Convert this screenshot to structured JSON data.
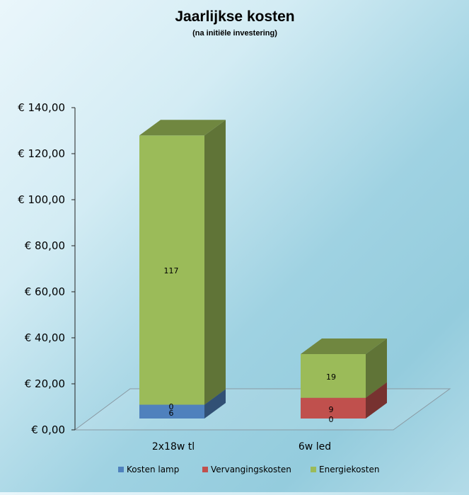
{
  "chart_data": {
    "type": "bar",
    "stacked": true,
    "style": "3d",
    "title": "Jaarlijkse kosten",
    "subtitle": "(na initiële investering)",
    "categories": [
      "2x18w tl",
      "6w led"
    ],
    "series": [
      {
        "name": "Kosten lamp",
        "values": [
          6,
          0
        ],
        "labels": [
          "6",
          "0"
        ],
        "color": "#4f81bd"
      },
      {
        "name": "Vervangingskosten",
        "values": [
          0,
          9
        ],
        "labels": [
          "0",
          "9"
        ],
        "color": "#c0504d"
      },
      {
        "name": "Energiekosten",
        "values": [
          117,
          19
        ],
        "labels": [
          "117",
          "19"
        ],
        "color": "#9bbb59"
      }
    ],
    "ylim": [
      0,
      140
    ],
    "yticks": [
      "€ 0,00",
      "€ 20,00",
      "€ 40,00",
      "€ 60,00",
      "€ 80,00",
      "€ 100,00",
      "€ 120,00",
      "€ 140,00"
    ],
    "legend": "bottom",
    "grid": false
  }
}
